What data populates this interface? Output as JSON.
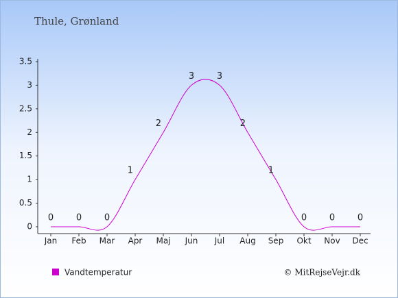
{
  "chart_data": {
    "type": "line",
    "title": "Thule, Grønland",
    "categories": [
      "Jan",
      "Feb",
      "Mar",
      "Apr",
      "Maj",
      "Jun",
      "Jul",
      "Aug",
      "Sep",
      "Okt",
      "Nov",
      "Dec"
    ],
    "series": [
      {
        "name": "Vandtemperatur",
        "color": "#cc00cc",
        "values": [
          0,
          0,
          0,
          1,
          2,
          3,
          3,
          2,
          1,
          0,
          0,
          0
        ]
      }
    ],
    "ylim": [
      0,
      3.5
    ],
    "yticks": [
      0,
      0.5,
      1,
      1.5,
      2,
      2.5,
      3,
      3.5
    ],
    "grid": false,
    "legend": "bottom-left",
    "copyright": "© MitRejseVejr.dk"
  }
}
